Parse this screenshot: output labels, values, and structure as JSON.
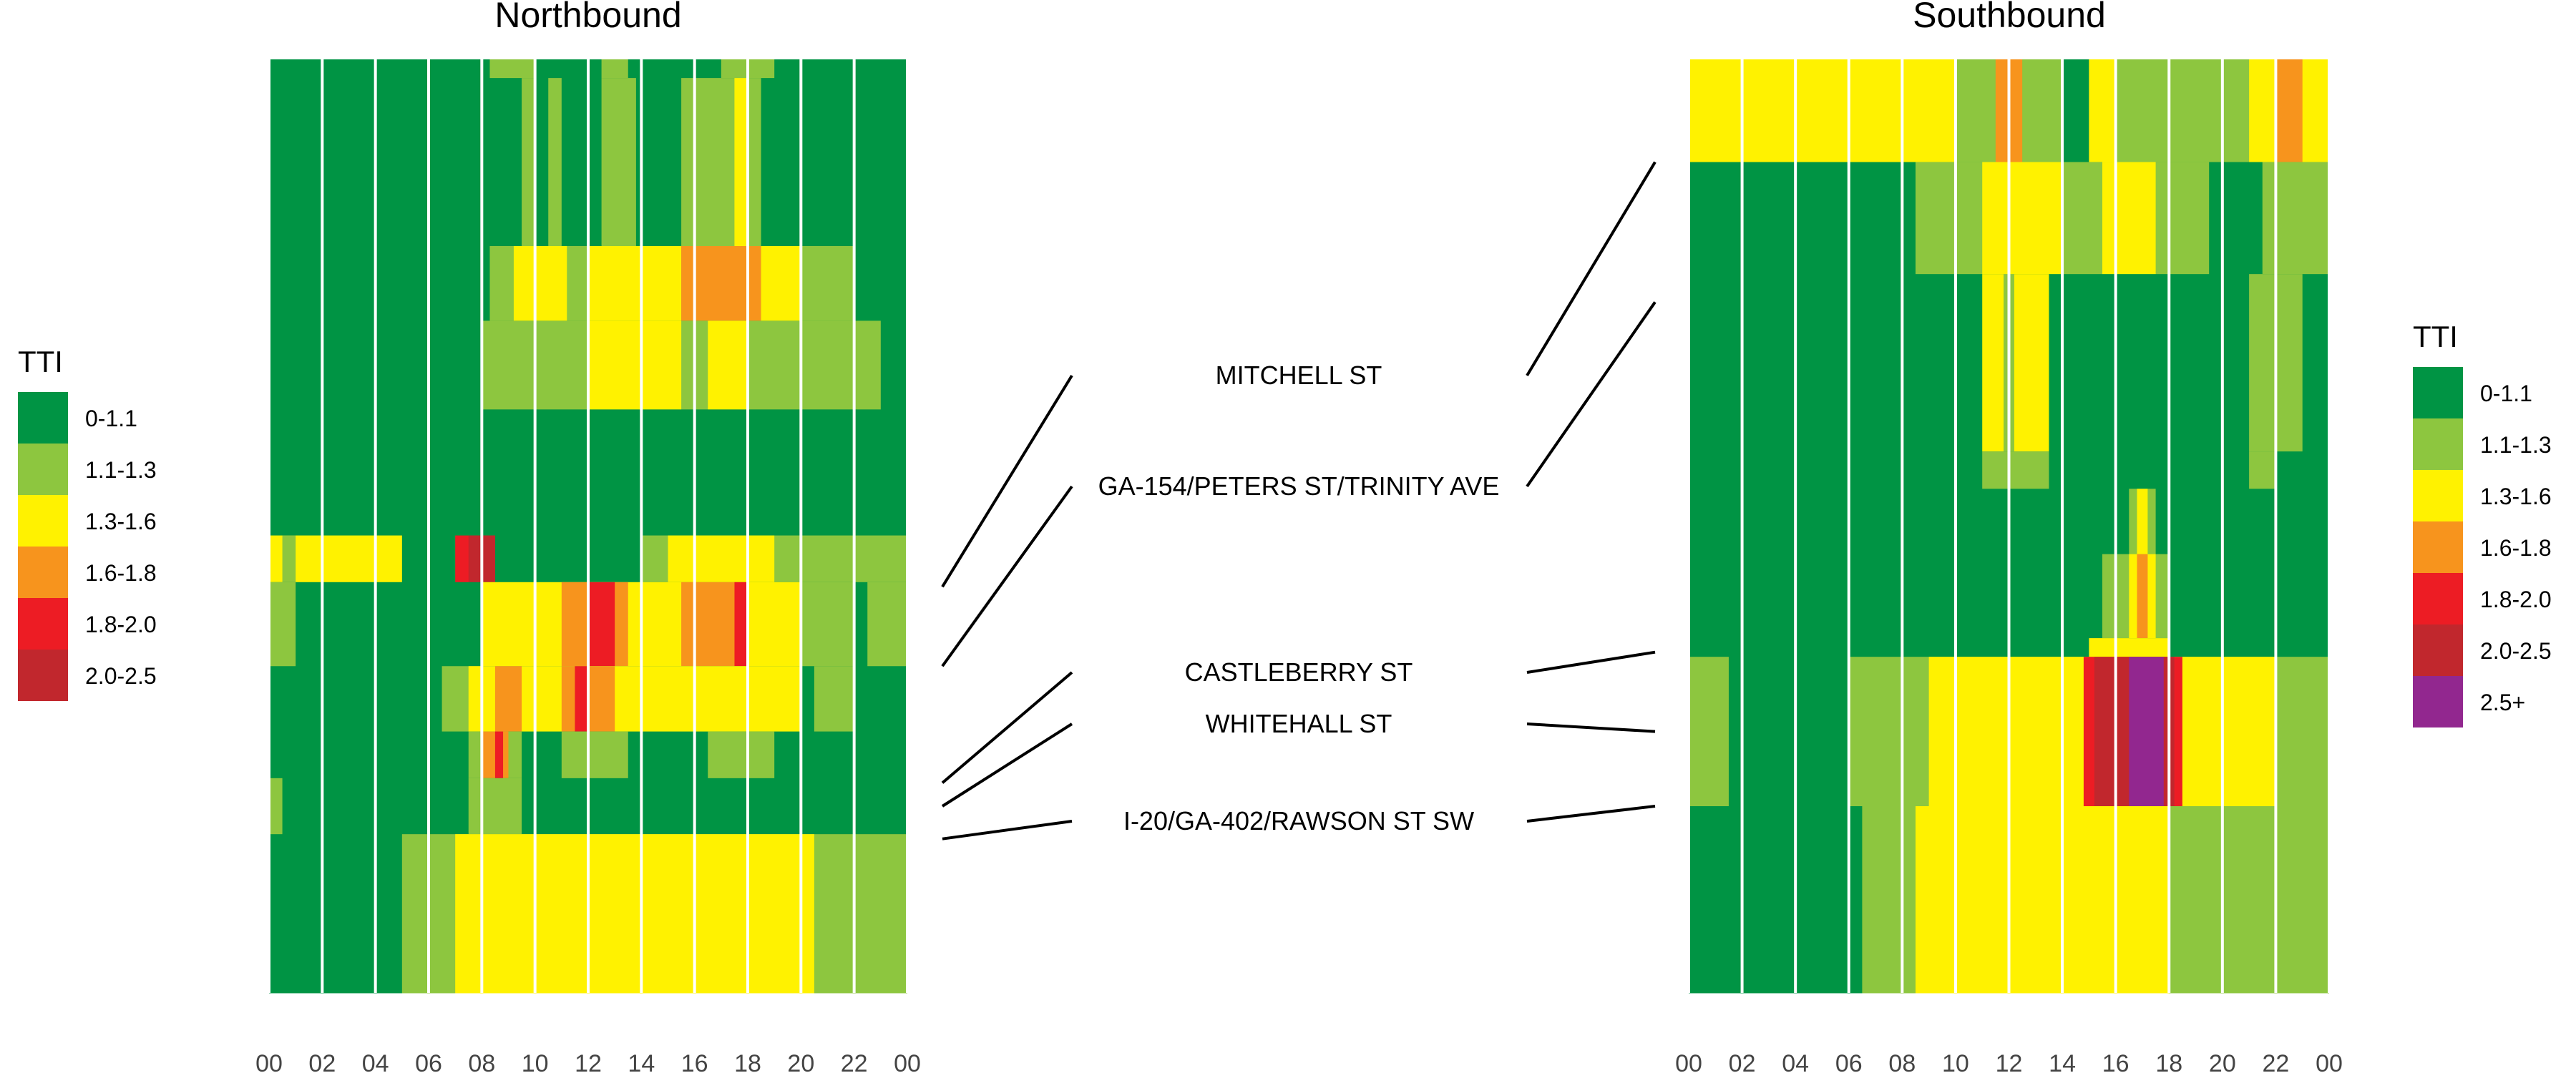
{
  "chart_data": {
    "type": "heatmap",
    "legend": {
      "title": "TTI",
      "categories": [
        {
          "label": "0-1.1",
          "color": "#009444"
        },
        {
          "label": "1.1-1.3",
          "color": "#8dc63f"
        },
        {
          "label": "1.3-1.6",
          "color": "#fff200"
        },
        {
          "label": "1.6-1.8",
          "color": "#f7941d"
        },
        {
          "label": "1.8-2.0",
          "color": "#ed1c24"
        },
        {
          "label": "2.0-2.5",
          "color": "#c1272d"
        },
        {
          "label": "2.5+",
          "color": "#92278f"
        }
      ]
    },
    "x_ticks": [
      "00",
      "02",
      "04",
      "06",
      "08",
      "10",
      "12",
      "14",
      "16",
      "18",
      "20",
      "22",
      "00"
    ],
    "x_domain": [
      0,
      24
    ],
    "y_domain": [
      0,
      100
    ],
    "cross_streets": [
      {
        "name": "MITCHELL ST"
      },
      {
        "name": "GA-154/PETERS ST/TRINITY AVE"
      },
      {
        "name": "CASTLEBERRY ST"
      },
      {
        "name": "WHITEHALL ST"
      },
      {
        "name": "I-20/GA-402/RAWSON ST SW"
      }
    ],
    "panels": [
      {
        "title": "Northbound",
        "legend_classes": 6,
        "street_positions": [
          56.5,
          65.0,
          77.5,
          80.0,
          83.5
        ],
        "rows": [
          {
            "y": [
              0,
              2
            ],
            "cells": [
              [
                0,
                24,
                0
              ],
              [
                8.3,
                10,
                1
              ],
              [
                17,
                19,
                1
              ],
              [
                12.5,
                13.5,
                1
              ]
            ]
          },
          {
            "y": [
              2,
              20
            ],
            "cells": [
              [
                0,
                24,
                0
              ],
              [
                9.5,
                10,
                1
              ],
              [
                10.5,
                11,
                1
              ],
              [
                12.5,
                13.8,
                1
              ],
              [
                15.5,
                18.5,
                1
              ],
              [
                17.5,
                18,
                2
              ]
            ]
          },
          {
            "y": [
              20,
              28
            ],
            "cells": [
              [
                0,
                24,
                0
              ],
              [
                8.3,
                22,
                1
              ],
              [
                9.2,
                11.2,
                2
              ],
              [
                12,
                15.5,
                2
              ],
              [
                15.5,
                18.5,
                3
              ],
              [
                18.5,
                20,
                2
              ]
            ]
          },
          {
            "y": [
              28,
              37.5
            ],
            "cells": [
              [
                0,
                24,
                0
              ],
              [
                8,
                23,
                1
              ],
              [
                12,
                15.5,
                2
              ],
              [
                16.5,
                18,
                2
              ]
            ]
          },
          {
            "y": [
              37.5,
              51
            ],
            "cells": [
              [
                0,
                24,
                0
              ]
            ]
          },
          {
            "y": [
              51,
              56
            ],
            "cells": [
              [
                0,
                24,
                0
              ],
              [
                0,
                5,
                2
              ],
              [
                0.5,
                1,
                1
              ],
              [
                7,
                8.5,
                4
              ],
              [
                7.5,
                8.5,
                5
              ],
              [
                14,
                24,
                1
              ],
              [
                15,
                19,
                2
              ]
            ]
          },
          {
            "y": [
              56,
              65
            ],
            "cells": [
              [
                0,
                24,
                0
              ],
              [
                0,
                1,
                1
              ],
              [
                8,
                20,
                2
              ],
              [
                11,
                13.5,
                3
              ],
              [
                12,
                13,
                4
              ],
              [
                15.5,
                17.5,
                3
              ],
              [
                17.5,
                18,
                4
              ],
              [
                20,
                22,
                1
              ],
              [
                22.5,
                24,
                1
              ]
            ]
          },
          {
            "y": [
              65,
              72
            ],
            "cells": [
              [
                0,
                24,
                0
              ],
              [
                6.5,
                20,
                1
              ],
              [
                7.5,
                20,
                2
              ],
              [
                8.5,
                9.5,
                3
              ],
              [
                11,
                13,
                3
              ],
              [
                11.5,
                12,
                4
              ],
              [
                20.5,
                22,
                1
              ]
            ]
          },
          {
            "y": [
              72,
              77
            ],
            "cells": [
              [
                0,
                24,
                0
              ],
              [
                7.5,
                9.5,
                1
              ],
              [
                8,
                9,
                3
              ],
              [
                8.5,
                8.8,
                4
              ],
              [
                11,
                13.5,
                1
              ],
              [
                16.5,
                19,
                1
              ]
            ]
          },
          {
            "y": [
              77,
              83
            ],
            "cells": [
              [
                0,
                24,
                0
              ],
              [
                0,
                0.5,
                1
              ],
              [
                7.5,
                9.5,
                1
              ]
            ]
          },
          {
            "y": [
              83,
              100
            ],
            "cells": [
              [
                0,
                24,
                0
              ],
              [
                5,
                24,
                1
              ],
              [
                7,
                20.5,
                2
              ]
            ]
          }
        ]
      },
      {
        "title": "Southbound",
        "legend_classes": 7,
        "street_positions": [
          11,
          26,
          63.5,
          72,
          80
        ],
        "rows": [
          {
            "y": [
              0,
              11
            ],
            "cells": [
              [
                0,
                24,
                2
              ],
              [
                10,
                14,
                1
              ],
              [
                11.5,
                12.5,
                3
              ],
              [
                14,
                15,
                0
              ],
              [
                16,
                21,
                1
              ],
              [
                22,
                23,
                3
              ]
            ]
          },
          {
            "y": [
              11,
              23
            ],
            "cells": [
              [
                0,
                24,
                0
              ],
              [
                8.5,
                19.5,
                1
              ],
              [
                11,
                14,
                2
              ],
              [
                15.5,
                17.5,
                2
              ],
              [
                21.5,
                24,
                1
              ]
            ]
          },
          {
            "y": [
              23,
              42
            ],
            "cells": [
              [
                0,
                24,
                0
              ],
              [
                11,
                13.5,
                2
              ],
              [
                11.8,
                12.2,
                1
              ],
              [
                21,
                23,
                1
              ]
            ]
          },
          {
            "y": [
              42,
              46
            ],
            "cells": [
              [
                0,
                24,
                0
              ],
              [
                11,
                13.5,
                1
              ],
              [
                21,
                22,
                1
              ]
            ]
          },
          {
            "y": [
              46,
              53
            ],
            "cells": [
              [
                0,
                24,
                0
              ],
              [
                16.5,
                17.5,
                1
              ],
              [
                16.8,
                17.2,
                2
              ]
            ]
          },
          {
            "y": [
              53,
              62
            ],
            "cells": [
              [
                0,
                24,
                0
              ],
              [
                15.5,
                18,
                1
              ],
              [
                16.5,
                17.5,
                2
              ],
              [
                16.8,
                17.2,
                3
              ]
            ]
          },
          {
            "y": [
              62,
              64
            ],
            "cells": [
              [
                0,
                24,
                0
              ],
              [
                15,
                18,
                2
              ]
            ]
          },
          {
            "y": [
              64,
              80
            ],
            "cells": [
              [
                0,
                24,
                0
              ],
              [
                0,
                1.5,
                1
              ],
              [
                6,
                24,
                1
              ],
              [
                9,
                22,
                2
              ],
              [
                14.8,
                18.5,
                4
              ],
              [
                15.2,
                18.2,
                5
              ],
              [
                16.5,
                17.8,
                6
              ]
            ]
          },
          {
            "y": [
              80,
              100
            ],
            "cells": [
              [
                0,
                24,
                0
              ],
              [
                6.5,
                24,
                1
              ],
              [
                8.5,
                18,
                2
              ],
              [
                16,
                17.5,
                2
              ]
            ]
          }
        ]
      }
    ]
  }
}
